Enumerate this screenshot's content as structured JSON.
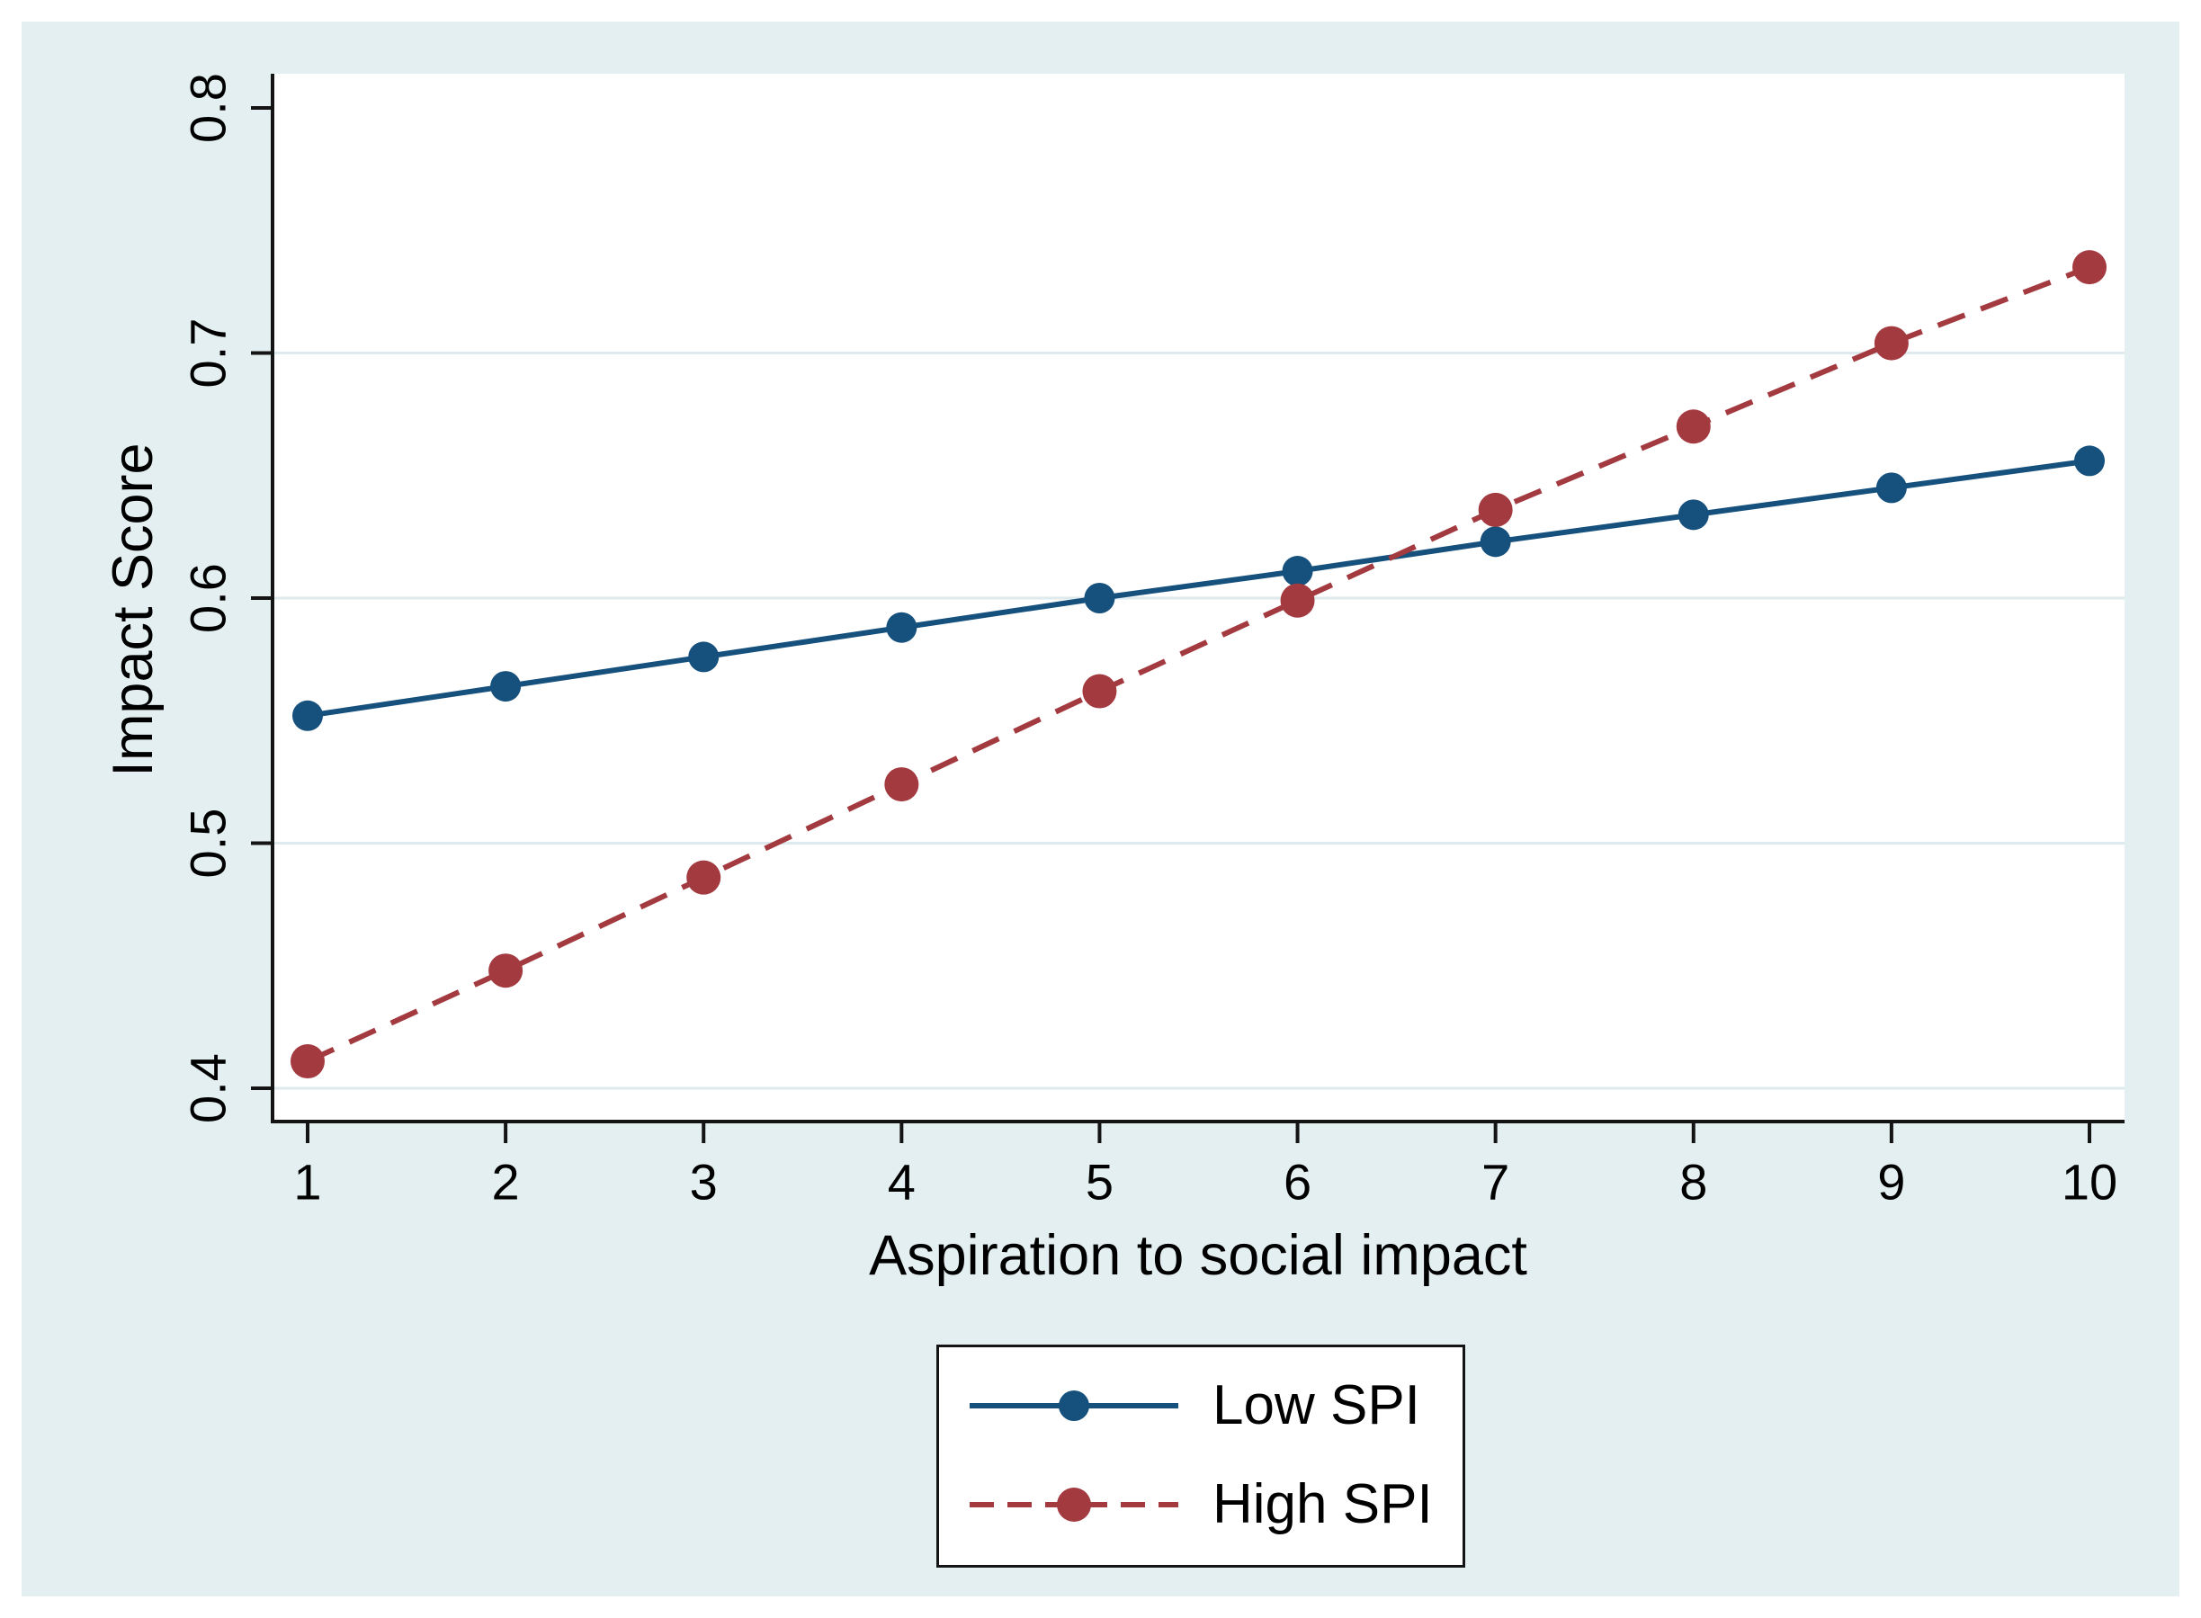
{
  "figure": {
    "kind": "stata-style-line-chart",
    "title": ""
  },
  "colors": {
    "page_background": "#FFFFFF",
    "canvas_background": "#E4EFF1",
    "plot_background": "#FFFFFF",
    "grid": "#DEEAED",
    "axis": "#141414",
    "text": "#000000",
    "legend_border": "#141414",
    "legend_background": "#FFFFFF"
  },
  "chart_data": {
    "type": "line",
    "title": "",
    "xlabel": "Aspiration to social impact",
    "ylabel": "Impact Score",
    "x": [
      1,
      2,
      3,
      4,
      5,
      6,
      7,
      8,
      9,
      10
    ],
    "x_tick_labels": [
      "1",
      "2",
      "3",
      "4",
      "5",
      "6",
      "7",
      "8",
      "9",
      "10"
    ],
    "y_tick_values": [
      0.8,
      0.7,
      0.6,
      0.5,
      0.4
    ],
    "y_tick_labels": [
      "0.8",
      "0.7",
      "0.6",
      "0.5",
      "0.4"
    ],
    "y_tick_label_rotation": -90,
    "grid_values": [
      0.7,
      0.6,
      0.5,
      0.4
    ],
    "grid": "horizontal-only",
    "xlim": [
      0.82,
      10.18
    ],
    "ylim": [
      0.387,
      0.814
    ],
    "legend_position": "below-plot-centered",
    "series": [
      {
        "name": "Low SPI",
        "line_style": "solid",
        "marker": "circle",
        "color": "#16507D",
        "values": [
          0.552,
          0.564,
          0.576,
          0.588,
          0.6,
          0.611,
          0.623,
          0.634,
          0.645,
          0.656
        ]
      },
      {
        "name": "High SPI",
        "line_style": "dashed",
        "marker": "circle",
        "color": "#A33A40",
        "values": [
          0.411,
          0.448,
          0.486,
          0.524,
          0.562,
          0.599,
          0.636,
          0.67,
          0.704,
          0.735
        ]
      }
    ]
  }
}
